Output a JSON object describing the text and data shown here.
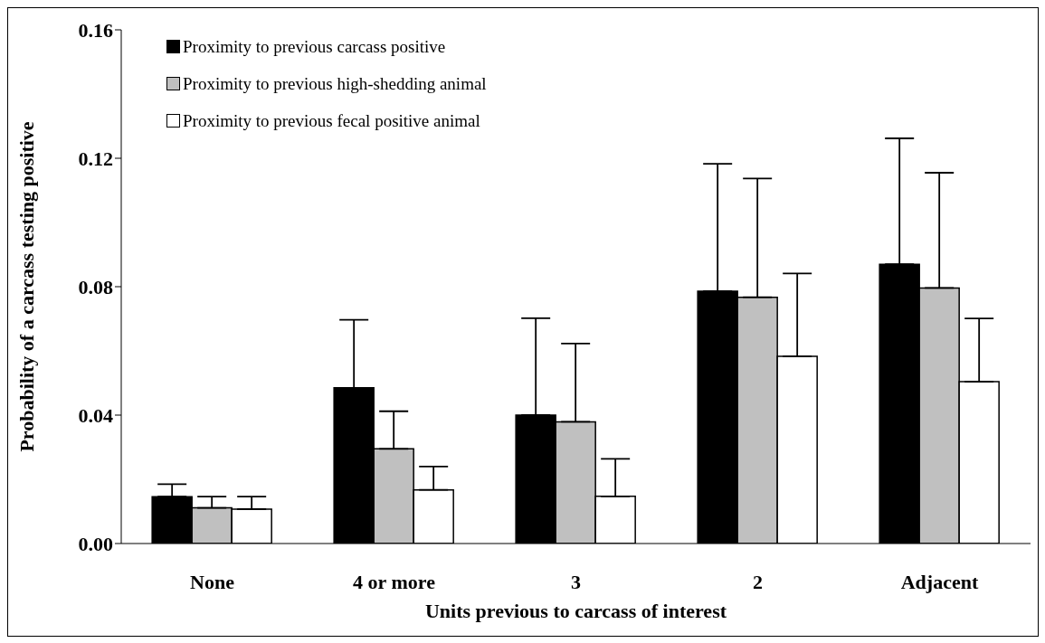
{
  "chart_data": {
    "type": "bar",
    "xlabel": "Units previous to carcass of interest",
    "ylabel": "Probability of a carcass testing positive",
    "categories": [
      "None",
      "4 or more",
      "3",
      "2",
      "Adjacent"
    ],
    "series": [
      {
        "name": "Proximity to previous carcass positive",
        "color": "#000000",
        "values": [
          0.0146,
          0.0485,
          0.04,
          0.0786,
          0.087
        ],
        "errors": [
          [
            0.0146,
            0.0185
          ],
          [
            0.0485,
            0.0697
          ],
          [
            0.04,
            0.0702
          ],
          [
            0.0786,
            0.1183
          ],
          [
            0.087,
            0.1262
          ]
        ]
      },
      {
        "name": "Proximity to previous high-shedding animal",
        "color": "#c0c0c0",
        "values": [
          0.0111,
          0.0295,
          0.0379,
          0.0767,
          0.0796
        ],
        "errors": [
          [
            0.0111,
            0.0146
          ],
          [
            0.0295,
            0.0412
          ],
          [
            0.0379,
            0.0623
          ],
          [
            0.0767,
            0.1137
          ],
          [
            0.0796,
            0.1155
          ]
        ]
      },
      {
        "name": "Proximity to previous fecal positive animal",
        "color": "#ffffff",
        "values": [
          0.0107,
          0.0167,
          0.0147,
          0.0583,
          0.0504
        ],
        "errors": [
          [
            0.0107,
            0.0146
          ],
          [
            0.0167,
            0.024
          ],
          [
            0.0147,
            0.0264
          ],
          [
            0.0583,
            0.0841
          ],
          [
            0.0504,
            0.0701
          ]
        ]
      }
    ],
    "ylim": [
      0,
      0.16
    ],
    "yticks": [
      {
        "value": 0,
        "label": "0.00"
      },
      {
        "value": 0.04,
        "label": "0.04"
      },
      {
        "value": 0.08,
        "label": "0.08"
      },
      {
        "value": 0.12,
        "label": "0.12"
      },
      {
        "value": 0.16,
        "label": "0.16"
      }
    ],
    "grid": false,
    "legend": "top left"
  }
}
